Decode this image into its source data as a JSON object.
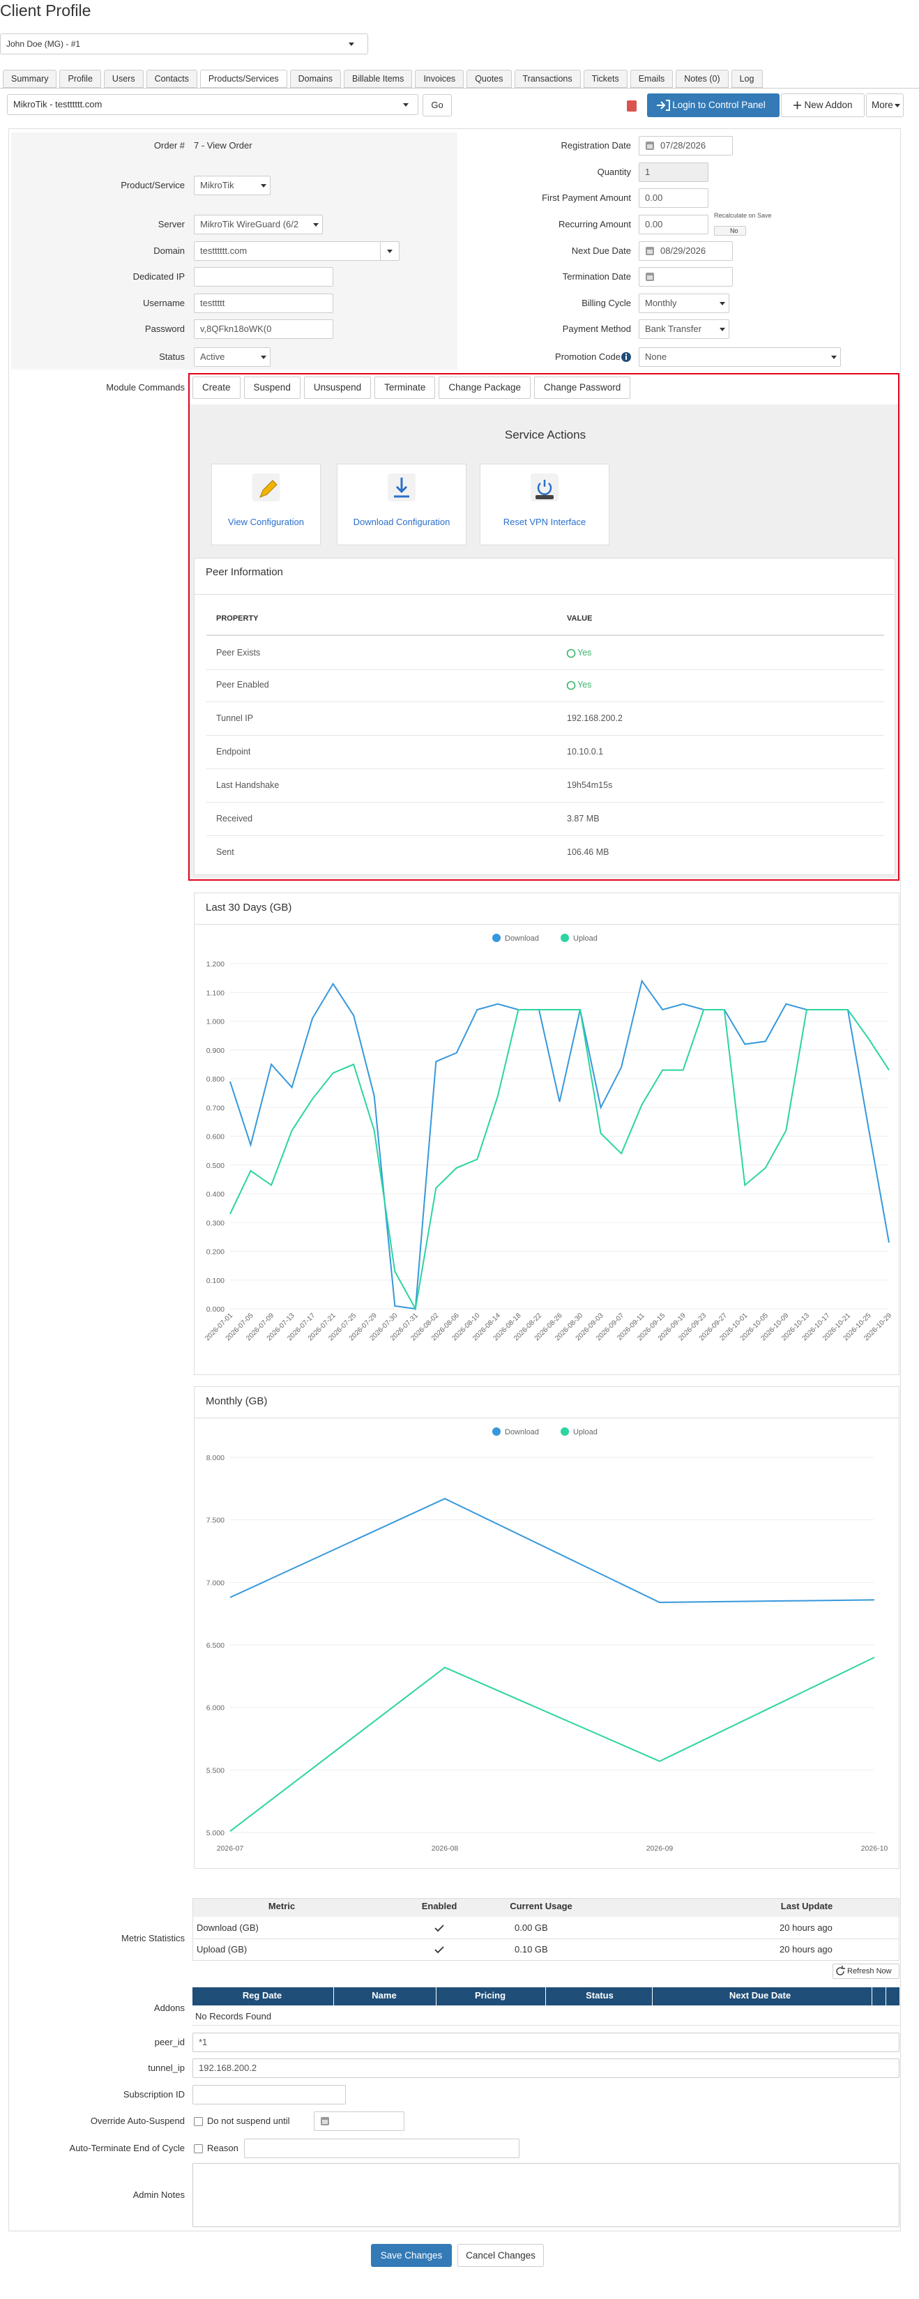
{
  "header": {
    "title": "Client Profile",
    "client": "John Doe (MG) - #1"
  },
  "tabs": [
    "Summary",
    "Profile",
    "Users",
    "Contacts",
    "Products/Services",
    "Domains",
    "Billable Items",
    "Invoices",
    "Quotes",
    "Transactions",
    "Tickets",
    "Emails",
    "Notes (0)",
    "Log"
  ],
  "toolbar": {
    "service": "MikroTik - testttttt.com",
    "go": "Go",
    "login": "Login to Control Panel",
    "new_addon": "New Addon",
    "more": "More"
  },
  "form": {
    "left": [
      {
        "label": "Order #",
        "value": "7 - View Order"
      },
      {
        "label": "Product/Service",
        "value": "MikroTik"
      },
      {
        "label": "Server",
        "value": "MikroTik WireGuard (6/2"
      },
      {
        "label": "Domain",
        "value": "testttttt.com"
      },
      {
        "label": "Dedicated IP"
      },
      {
        "label": "Username",
        "value": "testtttt"
      },
      {
        "label": "Password",
        "value": "v,8QFkn18oWK(0"
      },
      {
        "label": "Status",
        "value": "Active"
      }
    ],
    "right": [
      {
        "label": "Registration Date",
        "value": "07/28/2026"
      },
      {
        "label": "Quantity",
        "value": "1"
      },
      {
        "label": "First Payment Amount",
        "value": "0.00"
      },
      {
        "label": "Recurring Amount",
        "value": "0.00"
      },
      {
        "label": "Next Due Date",
        "value": "08/29/2026"
      },
      {
        "label": "Termination Date"
      },
      {
        "label": "Billing Cycle",
        "value": "Monthly"
      },
      {
        "label": "Payment Method",
        "value": "Bank Transfer"
      },
      {
        "label": "Promotion Code",
        "value": "None"
      }
    ],
    "recalculate": "Recalculate on Save",
    "recalculate_toggle": "No"
  },
  "module_commands": {
    "label": "Module Commands",
    "buttons": [
      "Create",
      "Suspend",
      "Unsuspend",
      "Terminate",
      "Change Package",
      "Change Password"
    ]
  },
  "service_actions": {
    "title": "Service Actions",
    "actions": [
      "View Configuration",
      "Download Configuration",
      "Reset VPN Interface"
    ]
  },
  "peer_info": {
    "title": "Peer Information",
    "columns": [
      "PROPERTY",
      "VALUE"
    ],
    "rows": [
      [
        "Peer Exists",
        "Yes"
      ],
      [
        "Peer Enabled",
        "Yes"
      ],
      [
        "Tunnel IP",
        "192.168.200.2"
      ],
      [
        "Endpoint",
        "10.10.0.1"
      ],
      [
        "Last Handshake",
        "19h54m15s"
      ],
      [
        "Received",
        "3.87 MB"
      ],
      [
        "Sent",
        "106.46 MB"
      ]
    ]
  },
  "chart_data": [
    {
      "type": "line",
      "title": "Last 30 Days (GB)",
      "categories": [
        "2026-07-01",
        "2026-07-05",
        "2026-07-09",
        "2026-07-13",
        "2026-07-17",
        "2026-07-21",
        "2026-07-25",
        "2026-07-29",
        "2026-07-30",
        "2026-07-31",
        "2026-08-02",
        "2026-08-06",
        "2026-08-10",
        "2026-08-14",
        "2026-08-18",
        "2026-08-22",
        "2026-08-26",
        "2026-08-30",
        "2026-09-03",
        "2026-09-07",
        "2026-09-11",
        "2026-09-15",
        "2026-09-19",
        "2026-09-23",
        "2026-09-27",
        "2026-10-01",
        "2026-10-05",
        "2026-10-09",
        "2026-10-13",
        "2026-10-17",
        "2026-10-21",
        "2026-10-25",
        "2026-10-29"
      ],
      "series": [
        {
          "name": "Download",
          "color": "#3598dc",
          "values": [
            0.79,
            0.57,
            0.85,
            0.77,
            1.01,
            1.13,
            1.02,
            0.74,
            0.01,
            0.0,
            0.86,
            0.89,
            1.04,
            1.06,
            1.04,
            1.04,
            0.72,
            1.04,
            0.7,
            0.84,
            1.14,
            1.04,
            1.06,
            1.04,
            1.04,
            0.92,
            0.93,
            1.06,
            1.04,
            1.04,
            1.04,
            0.63,
            0.23
          ]
        },
        {
          "name": "Upload",
          "color": "#2bd4a0",
          "values": [
            0.33,
            0.48,
            0.43,
            0.62,
            0.73,
            0.82,
            0.85,
            0.62,
            0.13,
            0.0,
            0.42,
            0.49,
            0.52,
            0.74,
            1.04,
            1.04,
            1.04,
            1.04,
            0.61,
            0.54,
            0.71,
            0.83,
            0.83,
            1.04,
            1.04,
            0.43,
            0.49,
            0.62,
            1.04,
            1.04,
            1.04,
            0.94,
            0.83
          ]
        }
      ],
      "ylim": [
        0,
        1.2
      ],
      "yticks": [
        {
          "value": 0,
          "label": "0.000"
        },
        {
          "value": 0.1,
          "label": "0.100"
        },
        {
          "value": 0.2,
          "label": "0.200"
        },
        {
          "value": 0.3,
          "label": "0.300"
        },
        {
          "value": 0.4,
          "label": "0.400"
        },
        {
          "value": 0.5,
          "label": "0.500"
        },
        {
          "value": 0.6,
          "label": "0.600"
        },
        {
          "value": 0.7,
          "label": "0.700"
        },
        {
          "value": 0.8,
          "label": "0.800"
        },
        {
          "value": 0.9,
          "label": "0.900"
        },
        {
          "value": 1.0,
          "label": "1.000"
        },
        {
          "value": 1.1,
          "label": "1.100"
        },
        {
          "value": 1.2,
          "label": "1.200"
        }
      ],
      "grid": true,
      "legend": "top",
      "rotate_x_labels": true
    },
    {
      "type": "line",
      "title": "Monthly (GB)",
      "categories": [
        "2026-07",
        "2026-08",
        "2026-09",
        "2026-10"
      ],
      "series": [
        {
          "name": "Download",
          "color": "#3598dc",
          "values": [
            6.88,
            7.67,
            6.84,
            6.86
          ]
        },
        {
          "name": "Upload",
          "color": "#2bd4a0",
          "values": [
            5.01,
            6.32,
            5.57,
            6.4
          ]
        }
      ],
      "ylim": [
        5,
        8
      ],
      "yticks": [
        {
          "value": 5,
          "label": "5.000"
        },
        {
          "value": 5.5,
          "label": "5.500"
        },
        {
          "value": 6,
          "label": "6.000"
        },
        {
          "value": 6.5,
          "label": "6.500"
        },
        {
          "value": 7,
          "label": "7.000"
        },
        {
          "value": 7.5,
          "label": "7.500"
        },
        {
          "value": 8,
          "label": "8.000"
        }
      ],
      "grid": true,
      "legend": "top",
      "rotate_x_labels": false
    }
  ],
  "metric_statistics": {
    "label": "Metric Statistics",
    "columns": [
      "Metric",
      "Enabled",
      "Current Usage",
      "Last Update"
    ],
    "rows": [
      [
        "Download (GB)",
        "0.00 GB",
        "20 hours ago"
      ],
      [
        "Upload (GB)",
        "0.10 GB",
        "20 hours ago"
      ]
    ],
    "refresh": "Refresh Now"
  },
  "addons": {
    "label": "Addons",
    "columns": [
      "Reg Date",
      "Name",
      "Pricing",
      "Status",
      "Next Due Date"
    ],
    "empty": "No Records Found"
  },
  "custom_fields": [
    {
      "label": "peer_id",
      "value": "*1"
    },
    {
      "label": "tunnel_ip",
      "value": "192.168.200.2"
    },
    {
      "label": "Subscription ID"
    }
  ],
  "override": {
    "label": "Override Auto-Suspend",
    "option": "Do not suspend until"
  },
  "auto_terminate": {
    "label": "Auto-Terminate End of Cycle",
    "option": "Reason"
  },
  "admin_notes": {
    "label": "Admin Notes"
  },
  "actions": {
    "save": "Save Changes",
    "cancel": "Cancel Changes"
  }
}
